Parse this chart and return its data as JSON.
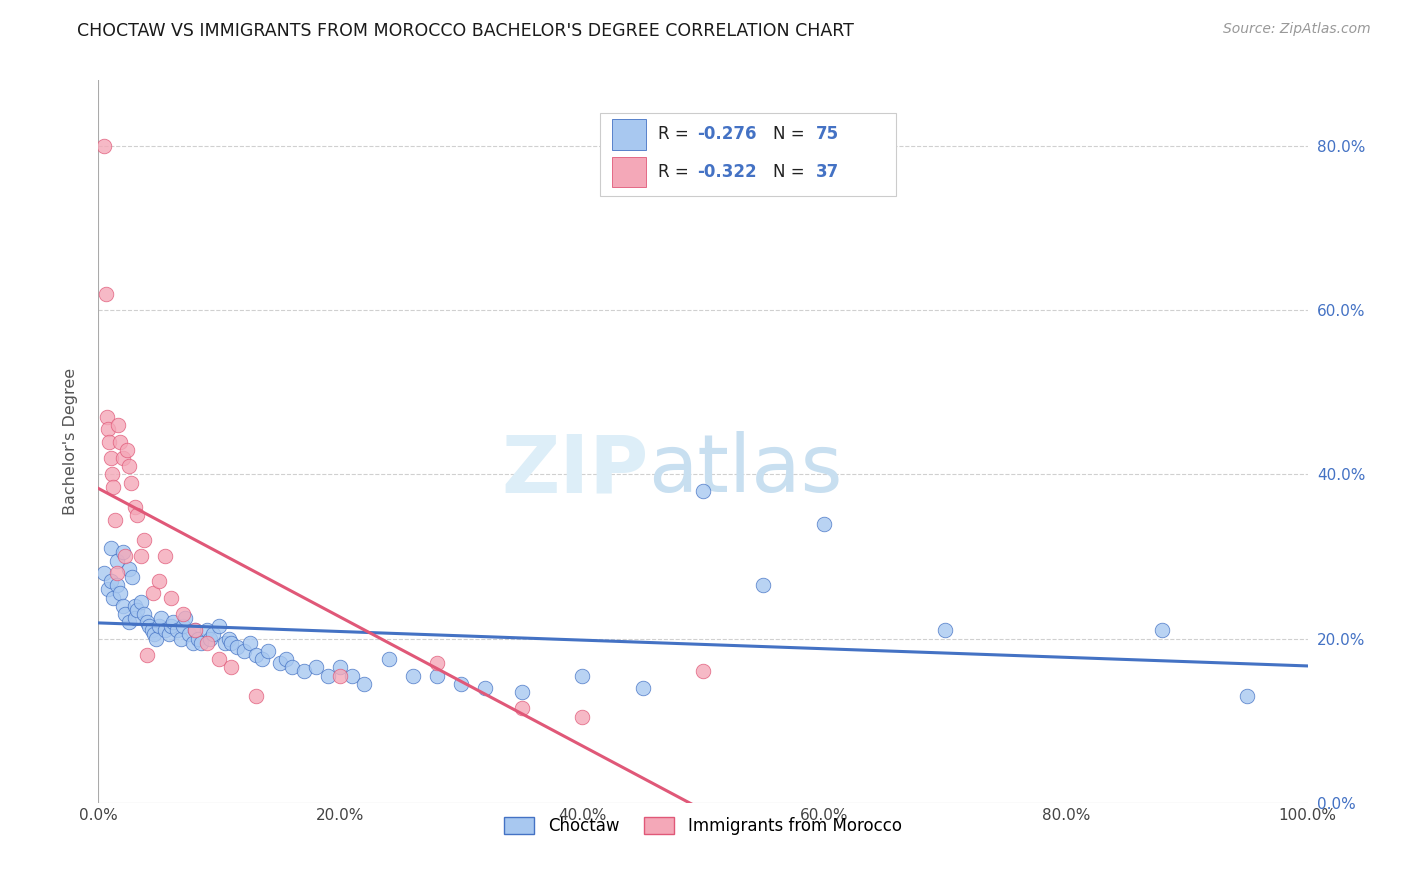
{
  "title": "CHOCTAW VS IMMIGRANTS FROM MOROCCO BACHELOR'S DEGREE CORRELATION CHART",
  "source": "Source: ZipAtlas.com",
  "xlabel": "",
  "ylabel": "Bachelor's Degree",
  "legend_label1": "Choctaw",
  "legend_label2": "Immigrants from Morocco",
  "r1": -0.276,
  "n1": 75,
  "r2": -0.322,
  "n2": 37,
  "color1": "#a8c8f0",
  "color2": "#f4a8b8",
  "line_color1": "#4472c4",
  "line_color2": "#e05878",
  "text_color_blue": "#4472c4",
  "background_color": "#ffffff",
  "grid_color": "#d0d0d0",
  "xlim": [
    0,
    1.0
  ],
  "ylim": [
    0,
    0.88
  ],
  "ytick_vals": [
    0.0,
    0.2,
    0.4,
    0.6,
    0.8
  ],
  "xtick_vals": [
    0.0,
    0.2,
    0.4,
    0.6,
    0.8,
    1.0
  ],
  "choctaw_x": [
    0.005,
    0.008,
    0.01,
    0.012,
    0.015,
    0.018,
    0.02,
    0.022,
    0.025,
    0.01,
    0.015,
    0.02,
    0.025,
    0.028,
    0.03,
    0.03,
    0.032,
    0.035,
    0.038,
    0.04,
    0.042,
    0.044,
    0.046,
    0.048,
    0.05,
    0.052,
    0.055,
    0.058,
    0.06,
    0.062,
    0.065,
    0.068,
    0.07,
    0.072,
    0.075,
    0.078,
    0.08,
    0.082,
    0.085,
    0.09,
    0.092,
    0.095,
    0.1,
    0.105,
    0.108,
    0.11,
    0.115,
    0.12,
    0.125,
    0.13,
    0.135,
    0.14,
    0.15,
    0.155,
    0.16,
    0.17,
    0.18,
    0.19,
    0.2,
    0.21,
    0.22,
    0.24,
    0.26,
    0.28,
    0.3,
    0.32,
    0.35,
    0.4,
    0.45,
    0.5,
    0.55,
    0.6,
    0.7,
    0.88,
    0.95
  ],
  "choctaw_y": [
    0.28,
    0.26,
    0.27,
    0.25,
    0.265,
    0.255,
    0.24,
    0.23,
    0.22,
    0.31,
    0.295,
    0.305,
    0.285,
    0.275,
    0.24,
    0.225,
    0.235,
    0.245,
    0.23,
    0.22,
    0.215,
    0.21,
    0.205,
    0.2,
    0.215,
    0.225,
    0.21,
    0.205,
    0.215,
    0.22,
    0.21,
    0.2,
    0.215,
    0.225,
    0.205,
    0.195,
    0.21,
    0.2,
    0.195,
    0.21,
    0.2,
    0.205,
    0.215,
    0.195,
    0.2,
    0.195,
    0.19,
    0.185,
    0.195,
    0.18,
    0.175,
    0.185,
    0.17,
    0.175,
    0.165,
    0.16,
    0.165,
    0.155,
    0.165,
    0.155,
    0.145,
    0.175,
    0.155,
    0.155,
    0.145,
    0.14,
    0.135,
    0.155,
    0.14,
    0.38,
    0.265,
    0.34,
    0.21,
    0.21,
    0.13
  ],
  "morocco_x": [
    0.005,
    0.006,
    0.007,
    0.008,
    0.009,
    0.01,
    0.011,
    0.012,
    0.014,
    0.015,
    0.016,
    0.018,
    0.02,
    0.022,
    0.024,
    0.025,
    0.027,
    0.03,
    0.032,
    0.035,
    0.038,
    0.04,
    0.045,
    0.05,
    0.055,
    0.06,
    0.07,
    0.08,
    0.09,
    0.1,
    0.11,
    0.13,
    0.2,
    0.28,
    0.35,
    0.4,
    0.5
  ],
  "morocco_y": [
    0.8,
    0.62,
    0.47,
    0.455,
    0.44,
    0.42,
    0.4,
    0.385,
    0.345,
    0.28,
    0.46,
    0.44,
    0.42,
    0.3,
    0.43,
    0.41,
    0.39,
    0.36,
    0.35,
    0.3,
    0.32,
    0.18,
    0.255,
    0.27,
    0.3,
    0.25,
    0.23,
    0.21,
    0.195,
    0.175,
    0.165,
    0.13,
    0.155,
    0.17,
    0.115,
    0.105,
    0.16
  ]
}
